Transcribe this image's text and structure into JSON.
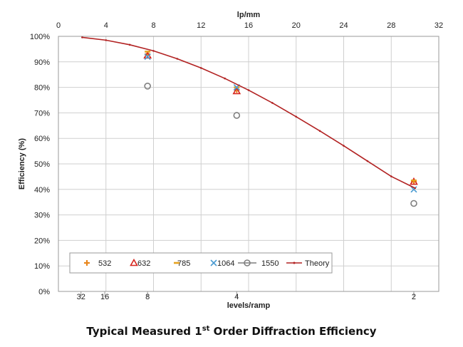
{
  "caption": {
    "prefix": "Typical Measured 1",
    "superscript": "st",
    "suffix": " Order Diffraction Efficiency"
  },
  "chart_data": {
    "type": "scatter",
    "title": "",
    "ylabel": "Efficiency (%)",
    "ylim": [
      0,
      100
    ],
    "yticks": [
      0,
      10,
      20,
      30,
      40,
      50,
      60,
      70,
      80,
      90,
      100
    ],
    "y_tick_suffix": "%",
    "top_axis": {
      "label": "lp/mm",
      "lim": [
        0,
        32
      ],
      "ticks": [
        0,
        4,
        8,
        12,
        16,
        20,
        24,
        28,
        32
      ]
    },
    "bottom_axis": {
      "label": "levels/ramp",
      "tick_labels": [
        {
          "label": "32",
          "lp_per_mm": 1.9
        },
        {
          "label": "16",
          "lp_per_mm": 3.9
        },
        {
          "label": "8",
          "lp_per_mm": 7.5
        },
        {
          "label": "4",
          "lp_per_mm": 15.0
        },
        {
          "label": "2",
          "lp_per_mm": 29.9
        }
      ]
    },
    "grid": true,
    "legend_position": "lower-left",
    "series": [
      {
        "name": "532",
        "marker": "plus",
        "color": "#e8871e",
        "x": [
          7.5,
          15.0,
          29.9
        ],
        "y": [
          93,
          79,
          43
        ]
      },
      {
        "name": "632",
        "marker": "triangle",
        "color": "#d7261e",
        "x": [
          7.5,
          15.0,
          29.9
        ],
        "y": [
          92.5,
          78.5,
          43
        ]
      },
      {
        "name": "785",
        "marker": "dash",
        "color": "#e5a11f",
        "x": [
          7.5,
          15.0,
          29.9
        ],
        "y": [
          94,
          80,
          43.5
        ]
      },
      {
        "name": "1064",
        "marker": "x",
        "color": "#4a9bd1",
        "x": [
          7.5,
          15.0,
          29.9
        ],
        "y": [
          92,
          80,
          40
        ]
      },
      {
        "name": "1550",
        "marker": "circle",
        "color": "#7f7f7f",
        "x": [
          7.5,
          15.0,
          29.9
        ],
        "y": [
          80.5,
          69,
          34.5
        ]
      },
      {
        "name": "Theory",
        "marker": "line",
        "color": "#b22222",
        "x": [
          2,
          4,
          6,
          8,
          10,
          12,
          14,
          16,
          18,
          20,
          22,
          24,
          26,
          28,
          30
        ],
        "y": [
          99.6,
          98.5,
          96.7,
          94.3,
          91.2,
          87.6,
          83.5,
          78.9,
          73.9,
          68.5,
          62.9,
          57.1,
          51.1,
          45.1,
          40.5
        ]
      }
    ]
  }
}
